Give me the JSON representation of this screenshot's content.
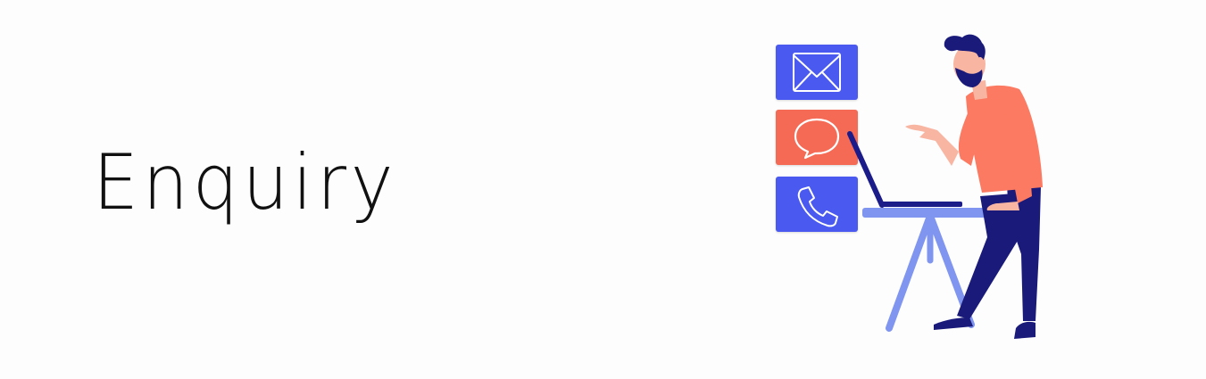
{
  "banner": {
    "title": "Enquiry"
  },
  "icons": {
    "email": "envelope-icon",
    "chat": "speech-bubble-icon",
    "phone": "phone-icon"
  },
  "colors": {
    "email_tile": "#4a5af0",
    "chat_tile": "#f56a55",
    "phone_tile": "#4a5af0",
    "shirt": "#fb7a61",
    "trousers": "#1a1a7a",
    "desk": "#7f95ef",
    "laptop": "#1b1b8a"
  }
}
